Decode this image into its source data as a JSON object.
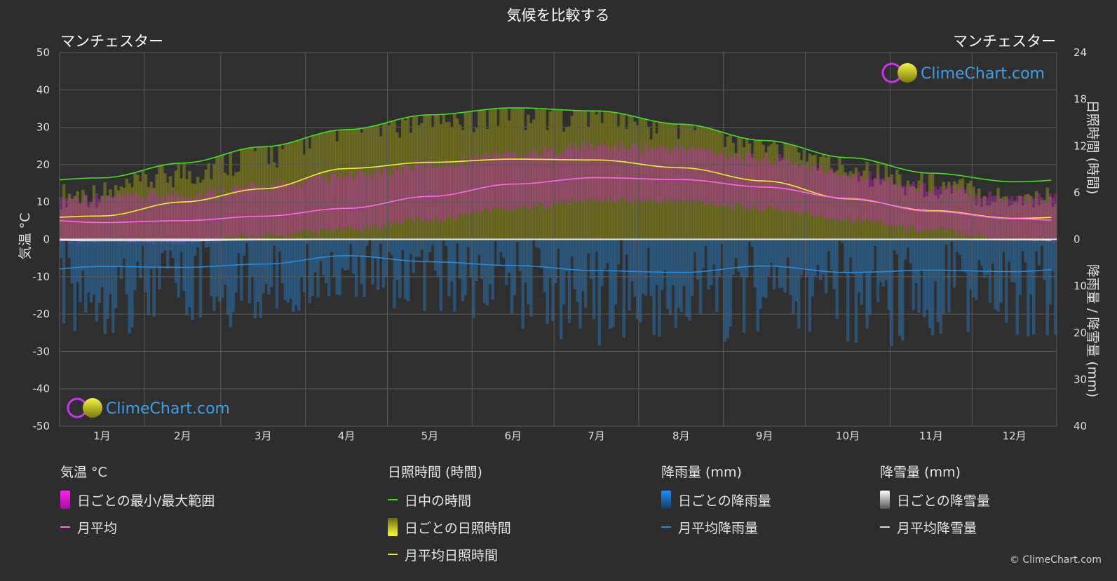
{
  "title": "気候を比較する",
  "location_left": "マンチェスター",
  "location_right": "マンチェスター",
  "axis_left_label": "気温 °C",
  "axis_right_top_label": "日照時間 (時間)",
  "axis_right_bottom_label": "降雨量 / 降雪量 (mm)",
  "watermark": "ClimeChart.com",
  "copyright": "© ClimeChart.com",
  "legend": {
    "temp": {
      "title": "気温 °C",
      "range": "日ごとの最小/最大範囲",
      "avg": "月平均"
    },
    "sun": {
      "title": "日照時間 (時間)",
      "daylight": "日中の時間",
      "daily": "日ごとの日照時間",
      "avg": "月平均日照時間"
    },
    "rain": {
      "title": "降雨量 (mm)",
      "daily": "日ごとの降雨量",
      "avg": "月平均降雨量"
    },
    "snow": {
      "title": "降雪量 (mm)",
      "daily": "日ごとの降雪量",
      "avg": "月平均降雪量"
    }
  },
  "chart_data": {
    "type": "line",
    "months": [
      "1月",
      "2月",
      "3月",
      "4月",
      "5月",
      "6月",
      "7月",
      "8月",
      "9月",
      "10月",
      "11月",
      "12月"
    ],
    "y_left_ticks": [
      50,
      40,
      30,
      20,
      10,
      0,
      -10,
      -20,
      -30,
      -40,
      -50
    ],
    "y_left_range": [
      -50,
      50
    ],
    "y_right_sun_ticks": [
      24,
      18,
      12,
      6,
      0
    ],
    "y_right_sun_range": [
      0,
      24
    ],
    "y_right_precip_ticks": [
      0,
      10,
      20,
      30,
      40
    ],
    "y_right_precip_range": [
      0,
      40
    ],
    "grid": true,
    "colors": {
      "daylight": "#44dd22",
      "sunshine_avg": "#eeee33",
      "temp_avg": "#ff66ee",
      "rain_avg": "#2a8ad8",
      "snow_avg": "#dddddd",
      "temp_range": "#d020c8",
      "sunshine_daily": "#a0a020",
      "rain_daily": "#2a6ea8",
      "snow_daily": "#888888"
    },
    "series": [
      {
        "name": "日中の時間",
        "axis": "sun",
        "values": [
          7.9,
          9.8,
          11.9,
          14.1,
          16.0,
          16.9,
          16.5,
          14.8,
          12.7,
          10.5,
          8.5,
          7.4
        ]
      },
      {
        "name": "月平均日照時間",
        "axis": "sun",
        "values": [
          3.0,
          4.8,
          6.5,
          9.1,
          9.9,
          10.3,
          10.2,
          9.2,
          7.5,
          5.2,
          3.7,
          2.7
        ]
      },
      {
        "name": "月平均",
        "axis": "temp",
        "values": [
          4.5,
          5.0,
          6.2,
          8.3,
          11.5,
          14.8,
          16.5,
          16.0,
          14.0,
          11.0,
          7.5,
          5.5
        ]
      },
      {
        "name": "月平均降雨量",
        "axis": "precip",
        "values": [
          5.8,
          6.0,
          5.3,
          3.5,
          4.8,
          5.6,
          6.7,
          7.1,
          5.7,
          7.1,
          6.6,
          6.9
        ]
      },
      {
        "name": "月平均降雪量",
        "axis": "precip",
        "values": [
          0.3,
          0.3,
          0.1,
          0,
          0,
          0,
          0,
          0,
          0,
          0,
          0,
          0.1
        ]
      }
    ],
    "temp_range": {
      "min": [
        1.5,
        1.5,
        2.8,
        4.5,
        7.5,
        10.5,
        12.5,
        12.2,
        10.2,
        7.5,
        4.5,
        2.2
      ],
      "max": [
        7.5,
        8.5,
        10.5,
        13.2,
        16.5,
        19.5,
        21.5,
        20.8,
        18.2,
        14.2,
        10.2,
        7.8
      ]
    }
  }
}
